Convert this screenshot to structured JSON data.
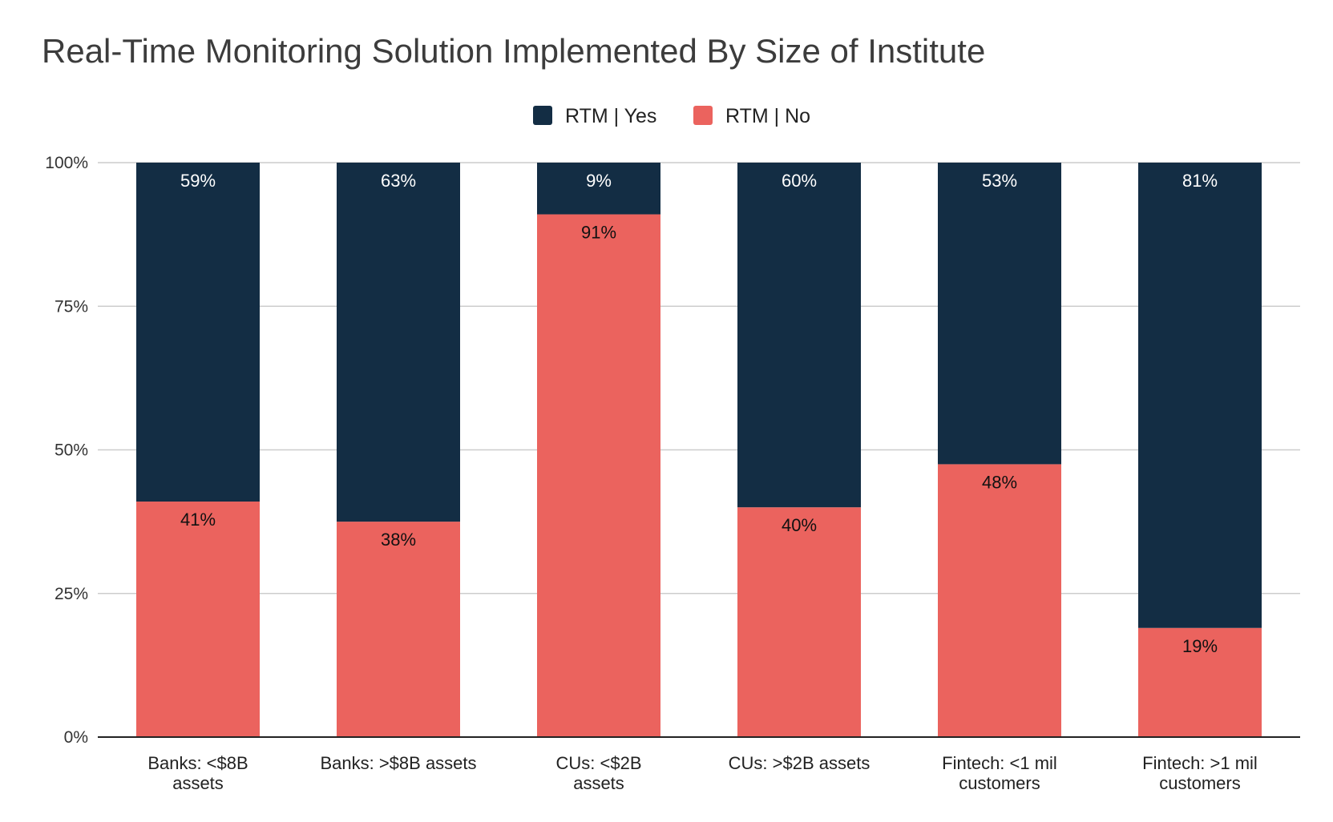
{
  "chart_data": {
    "type": "bar",
    "stacked": true,
    "title": "Real-Time Monitoring Solution Implemented By Size of Institute",
    "categories": [
      [
        "Banks: <$8B",
        "assets"
      ],
      [
        "Banks: >$8B assets"
      ],
      [
        "CUs: <$2B",
        "assets"
      ],
      [
        "CUs: >$2B assets"
      ],
      [
        "Fintech: <1 mil",
        "customers"
      ],
      [
        "Fintech: >1 mil",
        "customers"
      ]
    ],
    "series": [
      {
        "name": "RTM | No",
        "color": "#eb635e",
        "values": [
          41,
          37.5,
          91,
          40,
          47.5,
          19
        ],
        "labels": [
          "41%",
          "38%",
          "91%",
          "40%",
          "48%",
          "19%"
        ]
      },
      {
        "name": "RTM | Yes",
        "color": "#132d44",
        "values": [
          59,
          62.5,
          9,
          60,
          52.5,
          81
        ],
        "labels": [
          "59%",
          "63%",
          "9%",
          "60%",
          "53%",
          "81%"
        ]
      }
    ],
    "yticks": [
      {
        "value": 0,
        "label": "0%"
      },
      {
        "value": 25,
        "label": "25%"
      },
      {
        "value": 50,
        "label": "50%"
      },
      {
        "value": 75,
        "label": "75%"
      },
      {
        "value": 100,
        "label": "100%"
      }
    ],
    "ylim": [
      0,
      100
    ],
    "grid": true,
    "legend": "top-center",
    "legend_order": [
      "RTM | Yes",
      "RTM | No"
    ],
    "xlabel": "",
    "ylabel": ""
  }
}
